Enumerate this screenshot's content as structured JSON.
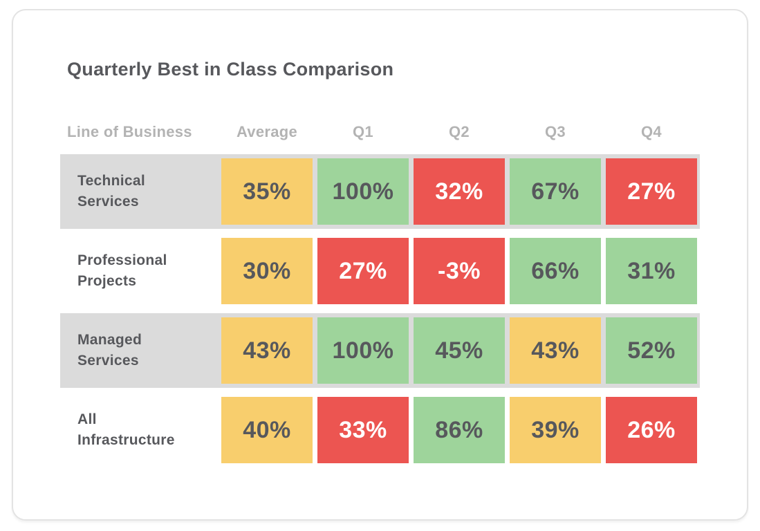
{
  "card": {
    "title": "Quarterly Best in Class Comparison"
  },
  "colors": {
    "yellow": "#F8CE6D",
    "green": "#9ED49B",
    "red": "#EC5551",
    "stripe": "#DBDBDB",
    "text_dark": "#57585C",
    "text_header": "#B3B3B3"
  },
  "chart_data": {
    "type": "table",
    "title": "Quarterly Best in Class Comparison",
    "columns": [
      "Line of Business",
      "Average",
      "Q1",
      "Q2",
      "Q3",
      "Q4"
    ],
    "rows": [
      {
        "label": "Technical Services",
        "cells": [
          {
            "value": "35%",
            "status": "yellow"
          },
          {
            "value": "100%",
            "status": "green"
          },
          {
            "value": "32%",
            "status": "red"
          },
          {
            "value": "67%",
            "status": "green"
          },
          {
            "value": "27%",
            "status": "red"
          }
        ]
      },
      {
        "label": "Professional Projects",
        "cells": [
          {
            "value": "30%",
            "status": "yellow"
          },
          {
            "value": "27%",
            "status": "red"
          },
          {
            "value": "-3%",
            "status": "red"
          },
          {
            "value": "66%",
            "status": "green"
          },
          {
            "value": "31%",
            "status": "green"
          }
        ]
      },
      {
        "label": "Managed Services",
        "cells": [
          {
            "value": "43%",
            "status": "yellow"
          },
          {
            "value": "100%",
            "status": "green"
          },
          {
            "value": "45%",
            "status": "green"
          },
          {
            "value": "43%",
            "status": "yellow"
          },
          {
            "value": "52%",
            "status": "green"
          }
        ]
      },
      {
        "label": "All Infrastructure",
        "cells": [
          {
            "value": "40%",
            "status": "yellow"
          },
          {
            "value": "33%",
            "status": "red"
          },
          {
            "value": "86%",
            "status": "green"
          },
          {
            "value": "39%",
            "status": "yellow"
          },
          {
            "value": "26%",
            "status": "red"
          }
        ]
      }
    ]
  }
}
